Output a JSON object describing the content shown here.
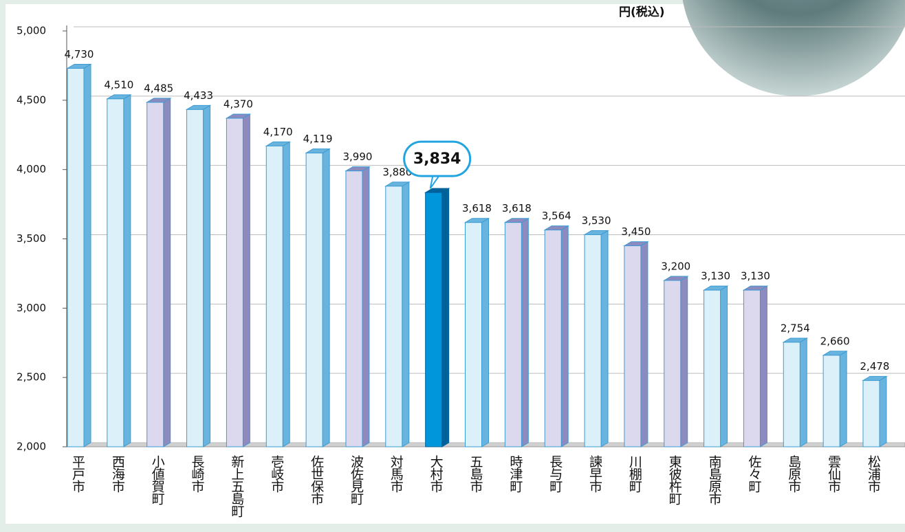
{
  "chart_data": {
    "type": "bar3d",
    "unit_label": "円(税込)",
    "categories": [
      "平戸市",
      "西海市",
      "小値賀町",
      "長崎市",
      "新上五島町",
      "壱岐市",
      "佐世保市",
      "波佐見町",
      "対馬市",
      "大村市",
      "五島市",
      "時津町",
      "長与町",
      "諫早市",
      "川棚町",
      "東彼杵町",
      "南島原市",
      "佐々町",
      "島原市",
      "雲仙市",
      "松浦市"
    ],
    "values": [
      4730,
      4510,
      4485,
      4433,
      4370,
      4170,
      4119,
      3990,
      3880,
      3834,
      3618,
      3618,
      3564,
      3530,
      3450,
      3200,
      3130,
      3130,
      2754,
      2660,
      2478
    ],
    "value_labels": [
      "4,730",
      "4,510",
      "4,485",
      "4,433",
      "4,370",
      "4,170",
      "4,119",
      "3,990",
      "3,880",
      "3,834",
      "3,618",
      "3,618",
      "3,564",
      "3,530",
      "3,450",
      "3,200",
      "3,130",
      "3,130",
      "2,754",
      "2,660",
      "2,478"
    ],
    "colors": [
      "#dcf0fa",
      "#dcf0fa",
      "#dcd8ee",
      "#dcf0fa",
      "#dcd8ee",
      "#dcf0fa",
      "#dcf0fa",
      "#dcd8ee",
      "#dcf0fa",
      "#0096dc",
      "#dcf0fa",
      "#dcd8ee",
      "#dcd8ee",
      "#dcf0fa",
      "#dcd8ee",
      "#dcd8ee",
      "#dcf0fa",
      "#dcd8ee",
      "#dcf0fa",
      "#dcf0fa",
      "#dcf0fa"
    ],
    "highlight_color": "#0096dc",
    "ylim": [
      2000,
      5000
    ],
    "yticks": [
      {
        "value": 2000,
        "label": "2,000"
      },
      {
        "value": 2500,
        "label": "2,500"
      },
      {
        "value": 3000,
        "label": "3,000"
      },
      {
        "value": 3500,
        "label": "3,500"
      },
      {
        "value": 4000,
        "label": "4,000"
      },
      {
        "value": 4500,
        "label": "4,500"
      },
      {
        "value": 5000,
        "label": "5,000"
      }
    ],
    "grid": true
  }
}
